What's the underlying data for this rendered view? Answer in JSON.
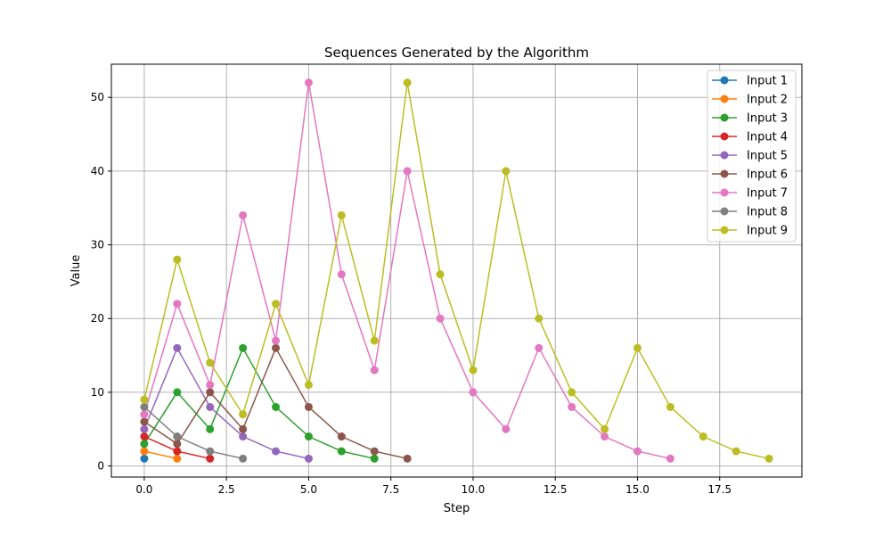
{
  "chart_data": {
    "type": "line",
    "title": "Sequences Generated by the Algorithm",
    "xlabel": "Step",
    "ylabel": "Value",
    "xlim": [
      -1,
      20
    ],
    "ylim": [
      -1.5,
      54.5
    ],
    "xticks": [
      0.0,
      2.5,
      5.0,
      7.5,
      10.0,
      12.5,
      15.0,
      17.5
    ],
    "xtick_labels": [
      "0.0",
      "2.5",
      "5.0",
      "7.5",
      "10.0",
      "12.5",
      "15.0",
      "17.5"
    ],
    "yticks": [
      0,
      10,
      20,
      30,
      40,
      50
    ],
    "ytick_labels": [
      "0",
      "10",
      "20",
      "30",
      "40",
      "50"
    ],
    "grid": true,
    "legend_position": "top-right",
    "series": [
      {
        "name": "Input 1",
        "color": "#1f77b4",
        "values": [
          1
        ]
      },
      {
        "name": "Input 2",
        "color": "#ff7f0e",
        "values": [
          2,
          1
        ]
      },
      {
        "name": "Input 3",
        "color": "#2ca02c",
        "values": [
          3,
          10,
          5,
          16,
          8,
          4,
          2,
          1
        ]
      },
      {
        "name": "Input 4",
        "color": "#d62728",
        "values": [
          4,
          2,
          1
        ]
      },
      {
        "name": "Input 5",
        "color": "#9467bd",
        "values": [
          5,
          16,
          8,
          4,
          2,
          1
        ]
      },
      {
        "name": "Input 6",
        "color": "#8c564b",
        "values": [
          6,
          3,
          10,
          5,
          16,
          8,
          4,
          2,
          1
        ]
      },
      {
        "name": "Input 7",
        "color": "#e377c2",
        "values": [
          7,
          22,
          11,
          34,
          17,
          52,
          26,
          13,
          40,
          20,
          10,
          5,
          16,
          8,
          4,
          2,
          1
        ]
      },
      {
        "name": "Input 8",
        "color": "#7f7f7f",
        "values": [
          8,
          4,
          2,
          1
        ]
      },
      {
        "name": "Input 9",
        "color": "#bcbd22",
        "values": [
          9,
          28,
          14,
          7,
          22,
          11,
          34,
          17,
          52,
          26,
          13,
          40,
          20,
          10,
          5,
          16,
          8,
          4,
          2,
          1
        ]
      }
    ]
  }
}
